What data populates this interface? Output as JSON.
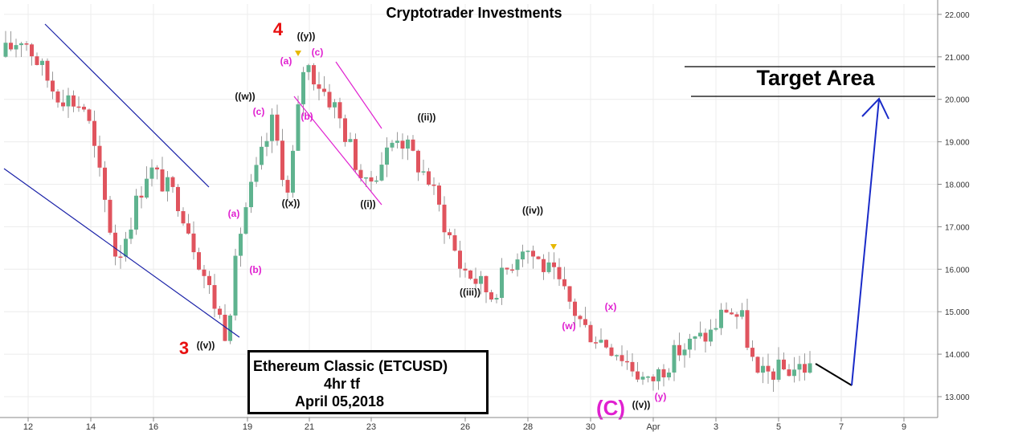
{
  "title": "Cryptotrader Investments",
  "info_box": {
    "line1": "Ethereum Classic  (ETCUSD)",
    "line2": "4hr tf",
    "line3": "April 05,2018"
  },
  "target_label": "Target Area",
  "colors": {
    "bull_candle": "#5fb38f",
    "bear_candle": "#e0545e",
    "channel": "#1a22a8",
    "minor_channel": "#e020d0",
    "projection": "#1a2bc8",
    "wave_major": "#e81010",
    "wave_sub": "#e020d0",
    "wave_minor": "#111111",
    "marker": "#e6b800"
  },
  "chart_data": {
    "type": "candlestick",
    "title": "Cryptotrader Investments",
    "symbol": "ETCUSD",
    "timeframe": "4hr",
    "y_axis": {
      "position": "right",
      "ticks": [
        "13.000",
        "14.000",
        "15.000",
        "16.000",
        "17.000",
        "18.000",
        "19.000",
        "20.000",
        "21.000",
        "22.000"
      ]
    },
    "x_axis": {
      "ticks": [
        "12",
        "14",
        "16",
        "19",
        "21",
        "23",
        "26",
        "28",
        "30",
        "Apr",
        "3",
        "5",
        "7",
        "9"
      ]
    },
    "price_path": [
      {
        "date": "Mar 11",
        "price": 20.7
      },
      {
        "date": "Mar 12",
        "price": 21.5
      },
      {
        "date": "Mar 13",
        "price": 20.2
      },
      {
        "date": "Mar 14",
        "price": 19.8
      },
      {
        "date": "Mar 15",
        "price": 16.2
      },
      {
        "date": "Mar 16",
        "price": 18.4
      },
      {
        "date": "Mar 17",
        "price": 17.6
      },
      {
        "date": "Mar 18",
        "price": 15.4
      },
      {
        "date": "Mar 18",
        "price": 14.5
      },
      {
        "date": "Mar 19",
        "price": 17.2
      },
      {
        "date": "Mar 20",
        "price": 19.5
      },
      {
        "date": "Mar 20",
        "price": 17.7
      },
      {
        "date": "Mar 21",
        "price": 20.9
      },
      {
        "date": "Mar 22",
        "price": 19.8
      },
      {
        "date": "Mar 23",
        "price": 17.9
      },
      {
        "date": "Mar 24",
        "price": 19.2
      },
      {
        "date": "Mar 25",
        "price": 18.1
      },
      {
        "date": "Mar 26",
        "price": 16.1
      },
      {
        "date": "Mar 27",
        "price": 15.4
      },
      {
        "date": "Mar 28",
        "price": 16.6
      },
      {
        "date": "Mar 29",
        "price": 15.8
      },
      {
        "date": "Mar 30",
        "price": 14.6
      },
      {
        "date": "Mar 31",
        "price": 14.1
      },
      {
        "date": "Apr 1",
        "price": 13.3
      },
      {
        "date": "Apr 2",
        "price": 14.1
      },
      {
        "date": "Apr 3",
        "price": 14.5
      },
      {
        "date": "Apr 3",
        "price": 15.1
      },
      {
        "date": "Apr 4",
        "price": 14.8
      },
      {
        "date": "Apr 4",
        "price": 13.4
      },
      {
        "date": "Apr 5",
        "price": 13.6
      },
      {
        "date": "Apr 6",
        "price": 13.7
      }
    ],
    "wave_labels": [
      {
        "text": "3",
        "level": "major"
      },
      {
        "text": "4",
        "level": "major"
      },
      {
        "text": "(C)",
        "level": "sub"
      },
      {
        "text": "((v))",
        "level": "minor"
      },
      {
        "text": "((w))",
        "level": "minor"
      },
      {
        "text": "((x))",
        "level": "minor"
      },
      {
        "text": "((y))",
        "level": "minor"
      },
      {
        "text": "((i))",
        "level": "minor"
      },
      {
        "text": "((ii))",
        "level": "minor"
      },
      {
        "text": "((iii))",
        "level": "minor"
      },
      {
        "text": "((iv))",
        "level": "minor"
      },
      {
        "text": "((v))",
        "level": "minor"
      },
      {
        "text": "(a)",
        "level": "sub"
      },
      {
        "text": "(b)",
        "level": "sub"
      },
      {
        "text": "(c)",
        "level": "sub"
      },
      {
        "text": "(a)",
        "level": "sub"
      },
      {
        "text": "(b)",
        "level": "sub"
      },
      {
        "text": "(c)",
        "level": "sub"
      },
      {
        "text": "(w)",
        "level": "sub"
      },
      {
        "text": "(x)",
        "level": "sub"
      },
      {
        "text": "(y)",
        "level": "sub"
      }
    ],
    "projection": [
      {
        "date": "Apr 6",
        "price": 13.7
      },
      {
        "date": "Apr 7",
        "price": 13.3
      },
      {
        "date": "Apr 8",
        "price": 20.0
      },
      {
        "date": "Apr 8",
        "price": 19.5
      }
    ],
    "target_area": {
      "low": 20.05,
      "high": 20.75
    }
  }
}
